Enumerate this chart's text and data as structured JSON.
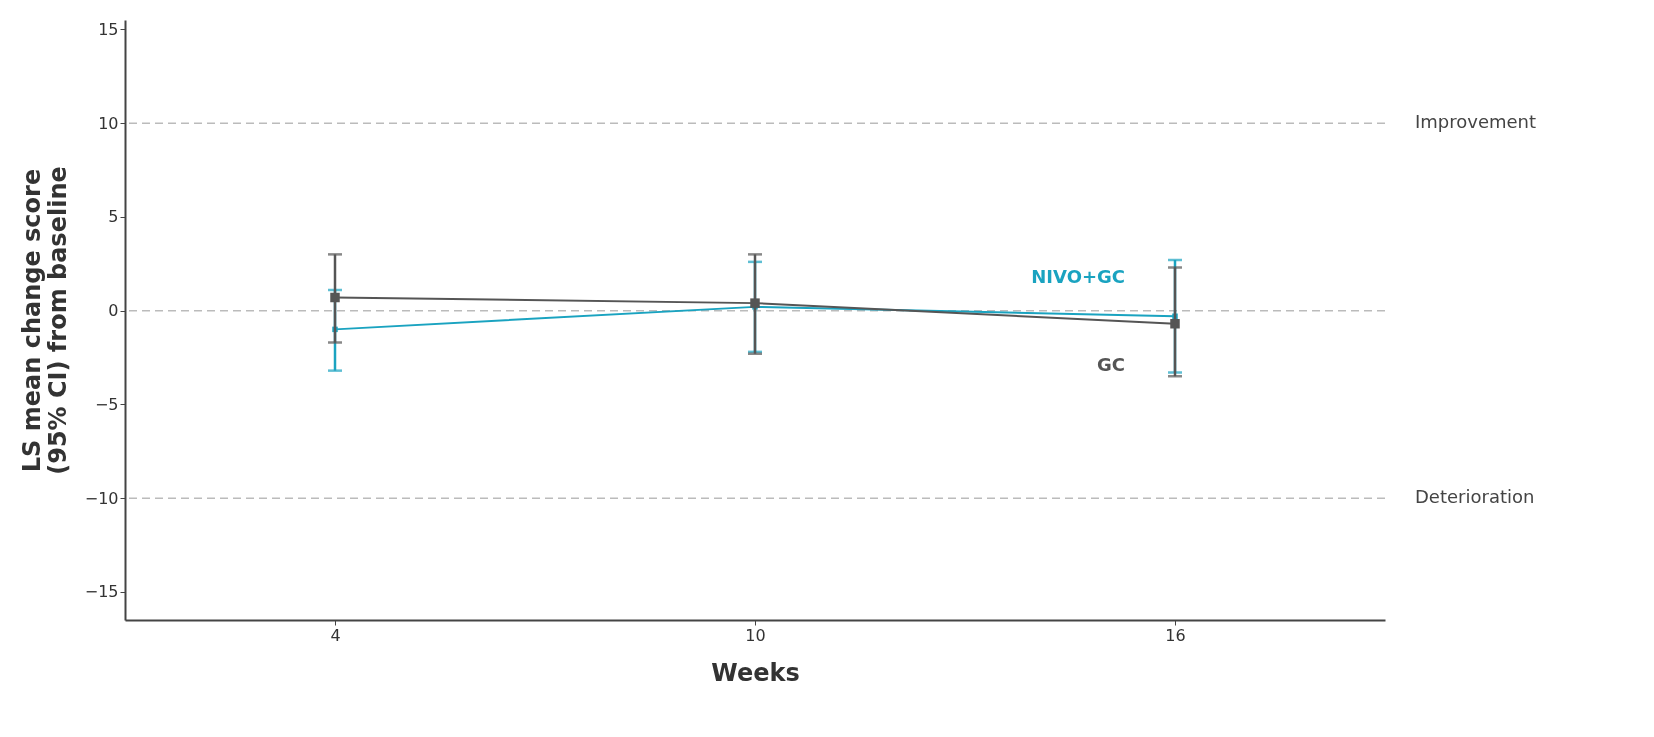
{
  "chart_data": {
    "type": "line",
    "xlabel": "Weeks",
    "ylabel": "LS mean change score (95% CI) from baseline",
    "x": [
      4,
      10,
      16
    ],
    "series": [
      {
        "name": "NIVO+GC",
        "color": "#1aa3c0",
        "values": [
          -1.0,
          0.2,
          -0.3
        ],
        "errors": [
          [
            -3.2,
            1.1
          ],
          [
            -2.2,
            2.6
          ],
          [
            -3.3,
            2.7
          ]
        ]
      },
      {
        "name": "GC",
        "color": "#555555",
        "values": [
          0.7,
          0.4,
          -0.7
        ],
        "errors": [
          [
            -1.7,
            3.0
          ],
          [
            -2.3,
            3.0
          ],
          [
            -3.5,
            2.3
          ]
        ]
      }
    ],
    "xlim": [
      1,
      19
    ],
    "xticks": [
      4,
      10,
      16
    ],
    "ylim": [
      -16.5,
      15.5
    ],
    "yticks": [
      -15,
      -10,
      -5,
      0,
      5,
      10,
      15
    ],
    "ref_lines": [
      {
        "axis": "y",
        "value": 10,
        "label": "Improvement"
      },
      {
        "axis": "y",
        "value": 0,
        "label": null
      },
      {
        "axis": "y",
        "value": -10,
        "label": "Deterioration"
      }
    ],
    "grid": false,
    "marker": "square",
    "line_style": "solid"
  }
}
